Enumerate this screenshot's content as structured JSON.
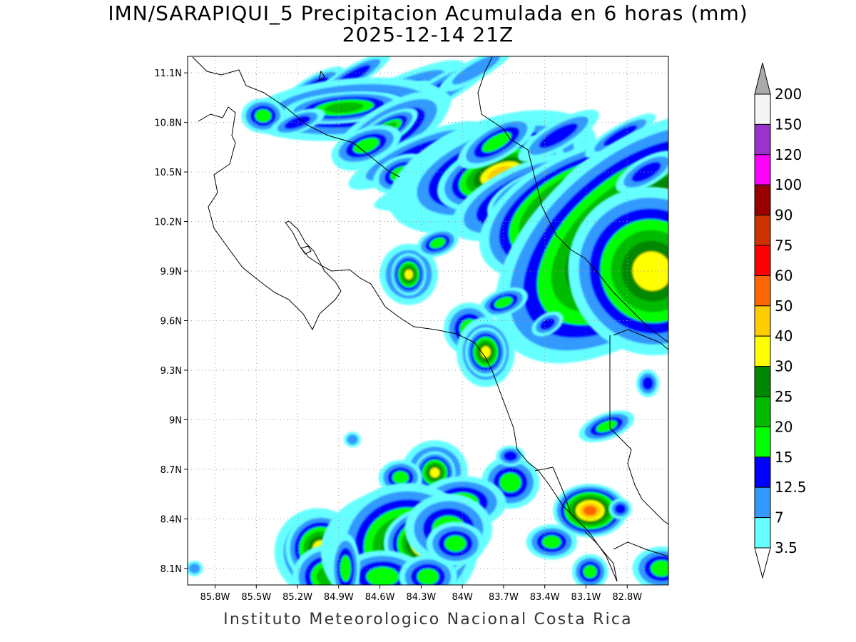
{
  "title": {
    "line1": "IMN/SARAPIQUI_5 Precipitacion Acumulada en 6 horas (mm)",
    "line2": "2025-12-14 21Z"
  },
  "footer": "Instituto Meteorologico Nacional Costa Rica",
  "map_extent": {
    "lon_min": -86.0,
    "lon_max": -82.5,
    "lat_min": 8.0,
    "lat_max": 11.2
  },
  "axes": {
    "lat_ticks": [
      {
        "value": 11.1,
        "label": "11.1N"
      },
      {
        "value": 10.8,
        "label": "10.8N"
      },
      {
        "value": 10.5,
        "label": "10.5N"
      },
      {
        "value": 10.2,
        "label": "10.2N"
      },
      {
        "value": 9.9,
        "label": "9.9N"
      },
      {
        "value": 9.6,
        "label": "9.6N"
      },
      {
        "value": 9.3,
        "label": "9.3N"
      },
      {
        "value": 9.0,
        "label": "9N"
      },
      {
        "value": 8.7,
        "label": "8.7N"
      },
      {
        "value": 8.4,
        "label": "8.4N"
      },
      {
        "value": 8.1,
        "label": "8.1N"
      }
    ],
    "lon_ticks": [
      {
        "value": -85.8,
        "label": "85.8W"
      },
      {
        "value": -85.5,
        "label": "85.5W"
      },
      {
        "value": -85.2,
        "label": "85.2W"
      },
      {
        "value": -84.9,
        "label": "84.9W"
      },
      {
        "value": -84.6,
        "label": "84.6W"
      },
      {
        "value": -84.3,
        "label": "84.3W"
      },
      {
        "value": -84.0,
        "label": "84W"
      },
      {
        "value": -83.7,
        "label": "83.7W"
      },
      {
        "value": -83.4,
        "label": "83.4W"
      },
      {
        "value": -83.1,
        "label": "83.1W"
      },
      {
        "value": -82.8,
        "label": "82.8W"
      }
    ]
  },
  "colorbar": {
    "boundaries": [
      "200",
      "150",
      "120",
      "100",
      "90",
      "75",
      "60",
      "50",
      "40",
      "30",
      "25",
      "20",
      "15",
      "12.5",
      "7",
      "3.5"
    ],
    "colors": [
      "#f5f5f5",
      "#9933cc",
      "#ff00ff",
      "#990000",
      "#cc3300",
      "#ff0000",
      "#ff6600",
      "#ffcc00",
      "#ffff00",
      "#008800",
      "#00bb00",
      "#00ff00",
      "#0000ff",
      "#3399ff",
      "#66ffff"
    ],
    "over_color": "#aaaaaa",
    "under_color": "#ffffff"
  },
  "precip_cells": [
    {
      "lon": -85.08,
      "lat": 11.02,
      "rx": 0.12,
      "ry": 0.03,
      "rot": -30,
      "level": 2
    },
    {
      "lon": -84.8,
      "lat": 11.08,
      "rx": 0.15,
      "ry": 0.03,
      "rot": -30,
      "level": 2
    },
    {
      "lon": -84.52,
      "lat": 10.95,
      "rx": 0.28,
      "ry": 0.05,
      "rot": -25,
      "level": 2
    },
    {
      "lon": -84.38,
      "lat": 10.98,
      "rx": 0.1,
      "ry": 0.03,
      "rot": -30,
      "level": 1
    },
    {
      "lon": -84.15,
      "lat": 11.0,
      "rx": 0.2,
      "ry": 0.04,
      "rot": -30,
      "level": 2
    },
    {
      "lon": -83.9,
      "lat": 11.12,
      "rx": 0.2,
      "ry": 0.04,
      "rot": -30,
      "level": 1
    },
    {
      "lon": -84.82,
      "lat": 10.88,
      "rx": 0.28,
      "ry": 0.07,
      "rot": -5,
      "level": 3
    },
    {
      "lon": -84.86,
      "lat": 10.89,
      "rx": 0.14,
      "ry": 0.03,
      "rot": -5,
      "level": 4
    },
    {
      "lon": -85.45,
      "lat": 10.84,
      "rx": 0.06,
      "ry": 0.04,
      "rot": 0,
      "level": 3
    },
    {
      "lon": -85.2,
      "lat": 10.8,
      "rx": 0.1,
      "ry": 0.03,
      "rot": -20,
      "level": 2
    },
    {
      "lon": -84.52,
      "lat": 10.75,
      "rx": 0.18,
      "ry": 0.06,
      "rot": -30,
      "level": 3
    },
    {
      "lon": -84.55,
      "lat": 10.76,
      "rx": 0.08,
      "ry": 0.025,
      "rot": -30,
      "level": 4
    },
    {
      "lon": -84.7,
      "lat": 10.66,
      "rx": 0.1,
      "ry": 0.04,
      "rot": -20,
      "level": 3
    },
    {
      "lon": -84.35,
      "lat": 10.6,
      "rx": 0.25,
      "ry": 0.05,
      "rot": -25,
      "level": 2
    },
    {
      "lon": -84.45,
      "lat": 10.49,
      "rx": 0.08,
      "ry": 0.04,
      "rot": -25,
      "level": 3
    },
    {
      "lon": -84.35,
      "lat": 10.38,
      "rx": 0.2,
      "ry": 0.04,
      "rot": -20,
      "level": 1
    },
    {
      "lon": -84.1,
      "lat": 10.44,
      "rx": 0.25,
      "ry": 0.05,
      "rot": -20,
      "level": 2
    },
    {
      "lon": -84.05,
      "lat": 10.6,
      "rx": 0.14,
      "ry": 0.05,
      "rot": -30,
      "level": 3
    },
    {
      "lon": -83.78,
      "lat": 10.5,
      "rx": 0.3,
      "ry": 0.12,
      "rot": -20,
      "level": 3
    },
    {
      "lon": -83.78,
      "lat": 10.51,
      "rx": 0.24,
      "ry": 0.09,
      "rot": -20,
      "level": 4
    },
    {
      "lon": -83.76,
      "lat": 10.51,
      "rx": 0.16,
      "ry": 0.06,
      "rot": -20,
      "level": 6
    },
    {
      "lon": -83.72,
      "lat": 10.49,
      "rx": 0.1,
      "ry": 0.04,
      "rot": -20,
      "level": 7
    },
    {
      "lon": -83.75,
      "lat": 10.68,
      "rx": 0.12,
      "ry": 0.04,
      "rot": -30,
      "level": 3
    },
    {
      "lon": -83.55,
      "lat": 10.35,
      "rx": 0.18,
      "ry": 0.06,
      "rot": -25,
      "level": 4
    },
    {
      "lon": -83.5,
      "lat": 10.36,
      "rx": 0.08,
      "ry": 0.03,
      "rot": -25,
      "level": 6
    },
    {
      "lon": -83.3,
      "lat": 10.72,
      "rx": 0.16,
      "ry": 0.04,
      "rot": -30,
      "level": 2
    },
    {
      "lon": -83.1,
      "lat": 10.28,
      "rx": 0.22,
      "ry": 0.1,
      "rot": -25,
      "level": 4
    },
    {
      "lon": -83.1,
      "lat": 10.28,
      "rx": 0.14,
      "ry": 0.06,
      "rot": -25,
      "level": 9
    },
    {
      "lon": -83.08,
      "lat": 10.26,
      "rx": 0.05,
      "ry": 0.025,
      "rot": -25,
      "level": 12
    },
    {
      "lon": -83.0,
      "lat": 10.55,
      "rx": 0.2,
      "ry": 0.04,
      "rot": -30,
      "level": 1
    },
    {
      "lon": -82.85,
      "lat": 10.72,
      "rx": 0.14,
      "ry": 0.03,
      "rot": -30,
      "level": 2
    },
    {
      "lon": -82.78,
      "lat": 10.1,
      "rx": 0.3,
      "ry": 0.15,
      "rot": -40,
      "level": 4
    },
    {
      "lon": -82.76,
      "lat": 10.1,
      "rx": 0.22,
      "ry": 0.1,
      "rot": -40,
      "level": 8
    },
    {
      "lon": -82.78,
      "lat": 10.16,
      "rx": 0.06,
      "ry": 0.025,
      "rot": -20,
      "level": 10
    },
    {
      "lon": -82.62,
      "lat": 9.9,
      "rx": 0.14,
      "ry": 0.12,
      "rot": -40,
      "level": 6
    },
    {
      "lon": -82.66,
      "lat": 10.5,
      "rx": 0.12,
      "ry": 0.04,
      "rot": -30,
      "level": 2
    },
    {
      "lon": -84.39,
      "lat": 9.88,
      "rx": 0.08,
      "ry": 0.07,
      "rot": 0,
      "level": 3
    },
    {
      "lon": -84.39,
      "lat": 9.88,
      "rx": 0.03,
      "ry": 0.03,
      "rot": 0,
      "level": 6
    },
    {
      "lon": -84.18,
      "lat": 10.07,
      "rx": 0.06,
      "ry": 0.03,
      "rot": -20,
      "level": 3
    },
    {
      "lon": -83.7,
      "lat": 9.71,
      "rx": 0.07,
      "ry": 0.03,
      "rot": -20,
      "level": 3
    },
    {
      "lon": -83.95,
      "lat": 9.55,
      "rx": 0.07,
      "ry": 0.06,
      "rot": 0,
      "level": 3
    },
    {
      "lon": -83.83,
      "lat": 9.41,
      "rx": 0.08,
      "ry": 0.08,
      "rot": 0,
      "level": 3
    },
    {
      "lon": -83.83,
      "lat": 9.41,
      "rx": 0.035,
      "ry": 0.035,
      "rot": 0,
      "level": 6
    },
    {
      "lon": -83.38,
      "lat": 9.58,
      "rx": 0.06,
      "ry": 0.03,
      "rot": -30,
      "level": 2
    },
    {
      "lon": -82.65,
      "lat": 9.22,
      "rx": 0.04,
      "ry": 0.04,
      "rot": 0,
      "level": 2
    },
    {
      "lon": -82.95,
      "lat": 8.96,
      "rx": 0.08,
      "ry": 0.03,
      "rot": -20,
      "level": 3
    },
    {
      "lon": -84.2,
      "lat": 8.69,
      "rx": 0.09,
      "ry": 0.07,
      "rot": 0,
      "level": 3
    },
    {
      "lon": -84.2,
      "lat": 8.68,
      "rx": 0.035,
      "ry": 0.03,
      "rot": 0,
      "level": 6
    },
    {
      "lon": -84.45,
      "lat": 8.65,
      "rx": 0.06,
      "ry": 0.04,
      "rot": 0,
      "level": 3
    },
    {
      "lon": -84.8,
      "lat": 8.88,
      "rx": 0.04,
      "ry": 0.03,
      "rot": 0,
      "level": 1
    },
    {
      "lon": -83.65,
      "lat": 8.62,
      "rx": 0.08,
      "ry": 0.06,
      "rot": 0,
      "level": 3
    },
    {
      "lon": -83.65,
      "lat": 8.78,
      "rx": 0.05,
      "ry": 0.03,
      "rot": 0,
      "level": 2
    },
    {
      "lon": -84.0,
      "lat": 8.5,
      "rx": 0.12,
      "ry": 0.06,
      "rot": 0,
      "level": 3
    },
    {
      "lon": -84.8,
      "lat": 8.34,
      "rx": 0.05,
      "ry": 0.03,
      "rot": 0,
      "level": 2
    },
    {
      "lon": -85.05,
      "lat": 8.2,
      "rx": 0.12,
      "ry": 0.1,
      "rot": 0,
      "level": 3
    },
    {
      "lon": -85.03,
      "lat": 8.22,
      "rx": 0.06,
      "ry": 0.05,
      "rot": 0,
      "level": 6
    },
    {
      "lon": -84.98,
      "lat": 8.05,
      "rx": 0.08,
      "ry": 0.06,
      "rot": 0,
      "level": 4
    },
    {
      "lon": -84.5,
      "lat": 8.2,
      "rx": 0.2,
      "ry": 0.14,
      "rot": 0,
      "level": 3
    },
    {
      "lon": -84.4,
      "lat": 8.23,
      "rx": 0.12,
      "ry": 0.09,
      "rot": 0,
      "level": 6
    },
    {
      "lon": -84.25,
      "lat": 8.25,
      "rx": 0.06,
      "ry": 0.04,
      "rot": 0,
      "level": 8
    },
    {
      "lon": -84.1,
      "lat": 8.34,
      "rx": 0.12,
      "ry": 0.08,
      "rot": 0,
      "level": 3
    },
    {
      "lon": -84.58,
      "lat": 8.05,
      "rx": 0.12,
      "ry": 0.06,
      "rot": 0,
      "level": 3
    },
    {
      "lon": -84.25,
      "lat": 8.05,
      "rx": 0.08,
      "ry": 0.05,
      "rot": 0,
      "level": 3
    },
    {
      "lon": -84.85,
      "lat": 8.1,
      "rx": 0.04,
      "ry": 0.08,
      "rot": 0,
      "level": 3
    },
    {
      "lon": -83.35,
      "lat": 8.26,
      "rx": 0.07,
      "ry": 0.04,
      "rot": 0,
      "level": 3
    },
    {
      "lon": -83.08,
      "lat": 8.46,
      "rx": 0.08,
      "ry": 0.05,
      "rot": 0,
      "level": 3
    },
    {
      "lon": -83.07,
      "lat": 8.45,
      "rx": 0.05,
      "ry": 0.03,
      "rot": 0,
      "level": 8
    },
    {
      "lon": -83.07,
      "lat": 8.08,
      "rx": 0.05,
      "ry": 0.04,
      "rot": 0,
      "level": 3
    },
    {
      "lon": -82.85,
      "lat": 8.46,
      "rx": 0.04,
      "ry": 0.03,
      "rot": 0,
      "level": 2
    },
    {
      "lon": -82.55,
      "lat": 8.1,
      "rx": 0.08,
      "ry": 0.05,
      "rot": 0,
      "level": 3
    },
    {
      "lon": -85.95,
      "lat": 8.1,
      "rx": 0.04,
      "ry": 0.03,
      "rot": 0,
      "level": 1
    },
    {
      "lon": -84.05,
      "lat": 8.25,
      "rx": 0.08,
      "ry": 0.05,
      "rot": 0,
      "level": 3
    }
  ]
}
